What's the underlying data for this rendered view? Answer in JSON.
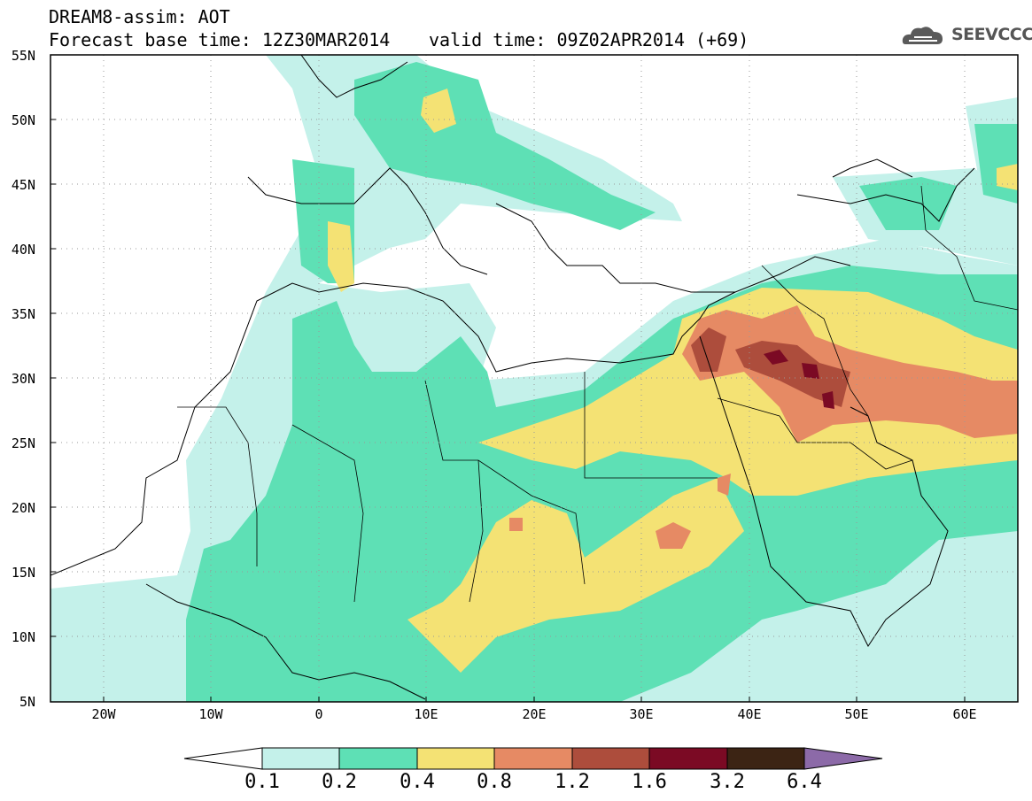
{
  "header": {
    "title_line1": "DREAM8-assim: AOT",
    "title_line2": "Forecast base time: 12Z30MAR2014",
    "valid_time": "valid time: 09Z02APR2014 (+69)"
  },
  "logo": {
    "text": "SEEVCCC",
    "icon": "cloud-icon"
  },
  "map": {
    "projection": "lat-lon",
    "lon_range": [
      -25,
      65
    ],
    "lat_range": [
      5,
      55
    ],
    "lat_labels": [
      "55N",
      "50N",
      "45N",
      "40N",
      "35N",
      "30N",
      "25N",
      "20N",
      "15N",
      "10N",
      "5N"
    ],
    "lon_labels": [
      "20W",
      "10W",
      "0",
      "10E",
      "20E",
      "30E",
      "40E",
      "50E",
      "60E"
    ],
    "grid": "dotted"
  },
  "colorbar": {
    "labels": [
      "0.1",
      "0.2",
      "0.4",
      "0.8",
      "1.2",
      "1.6",
      "3.2",
      "6.4"
    ],
    "colors": [
      "#ffffff",
      "#c4f1ea",
      "#5ee0b5",
      "#f4e274",
      "#e68a64",
      "#ad4d3c",
      "#7b0a24",
      "#3c2414",
      "#8c6aa8"
    ]
  },
  "colors": {
    "level_0.1": "#c4f1ea",
    "level_0.2": "#5ee0b5",
    "level_0.4": "#f4e274",
    "level_0.8": "#e68a64",
    "level_1.2": "#ad4d3c",
    "level_1.6": "#7b0a24"
  }
}
